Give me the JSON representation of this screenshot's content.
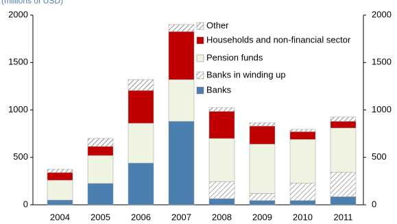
{
  "chart_data": {
    "type": "stacked_bar",
    "subtitle": "(millions of USD)",
    "categories": [
      "2004",
      "2005",
      "2006",
      "2007",
      "2008",
      "2009",
      "2010",
      "2011"
    ],
    "series": [
      {
        "name": "Banks",
        "color": "#4a7fb0",
        "hatch": false,
        "values": [
          50,
          225,
          440,
          880,
          65,
          45,
          45,
          85
        ]
      },
      {
        "name": "Banks in winding up",
        "color": "#8c8c8c",
        "hatch": true,
        "values": [
          0,
          0,
          0,
          0,
          180,
          75,
          185,
          260
        ]
      },
      {
        "name": "Pension funds",
        "color": "#eef3e2",
        "hatch": false,
        "values": [
          210,
          295,
          420,
          440,
          455,
          520,
          460,
          465
        ]
      },
      {
        "name": "Households and non-financial sector",
        "color": "#c00000",
        "hatch": false,
        "values": [
          80,
          95,
          345,
          505,
          285,
          190,
          80,
          70
        ]
      },
      {
        "name": "Other",
        "color": "#6a6a6a",
        "hatch": true,
        "values": [
          35,
          85,
          115,
          75,
          40,
          35,
          25,
          45
        ]
      }
    ],
    "ylim": [
      0,
      2000
    ],
    "yticks": [
      0,
      500,
      1000,
      1500,
      2000
    ],
    "y2lim": [
      0,
      2000
    ],
    "y2ticks": [
      0,
      500,
      1000,
      1500,
      2000
    ],
    "grid": false
  }
}
